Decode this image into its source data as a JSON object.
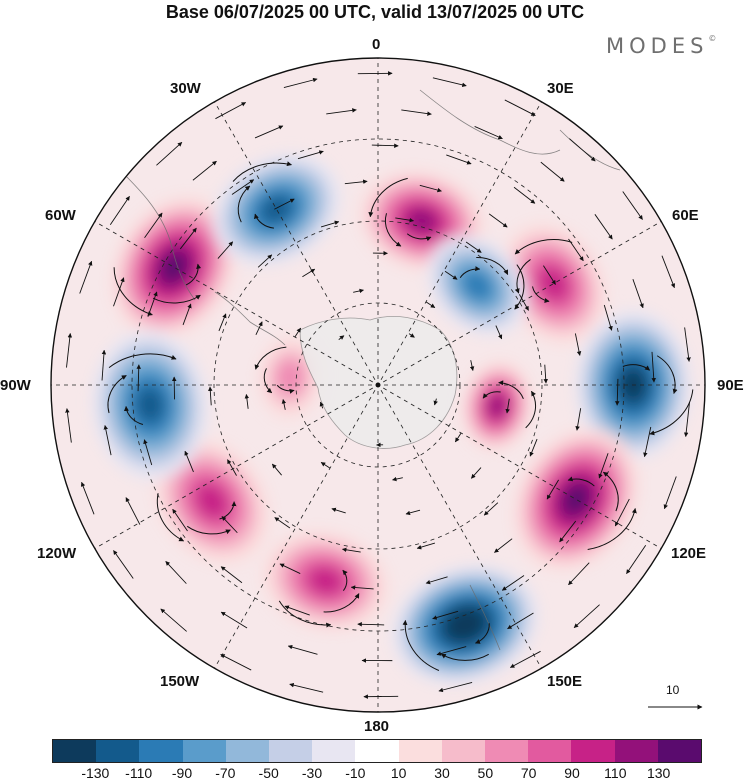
{
  "title": "Base 06/07/2025 00 UTC, valid 13/07/2025 00 UTC",
  "logo": "MODES",
  "logo_mark": "©",
  "longitude_labels": {
    "top": "0",
    "top_right": "30E",
    "right_upper": "60E",
    "right": "90E",
    "right_lower": "120E",
    "bottom_right": "150E",
    "bottom": "180",
    "bottom_left": "150W",
    "left_lower": "120W",
    "left": "90W",
    "left_upper": "60W",
    "top_left": "30W"
  },
  "reference_vector": "10",
  "colorbar": {
    "colors": [
      "#0d3a5c",
      "#135a8c",
      "#2b7bb5",
      "#5a9ccb",
      "#92b8da",
      "#c5cfe7",
      "#e8e6f2",
      "#ffffff",
      "#fbdede",
      "#f6bccb",
      "#ef8bb4",
      "#e25a9f",
      "#c72287",
      "#93117a",
      "#5a0b6e"
    ],
    "tick_labels": [
      "-130",
      "-110",
      "-90",
      "-70",
      "-50",
      "-30",
      "-10",
      "10",
      "30",
      "50",
      "70",
      "90",
      "110",
      "130"
    ]
  },
  "anomaly_centers": [
    {
      "sign": "positive",
      "strength": 110,
      "location": "60W"
    },
    {
      "sign": "negative",
      "strength": 90,
      "location": "30W"
    },
    {
      "sign": "positive",
      "strength": 90,
      "location": "15E"
    },
    {
      "sign": "positive",
      "strength": 70,
      "location": "60E"
    },
    {
      "sign": "negative",
      "strength": 70,
      "location": "45E"
    },
    {
      "sign": "negative",
      "strength": 110,
      "location": "90E"
    },
    {
      "sign": "positive",
      "strength": 90,
      "location": "100E"
    },
    {
      "sign": "positive",
      "strength": 110,
      "location": "120E"
    },
    {
      "sign": "negative",
      "strength": 130,
      "location": "160E"
    },
    {
      "sign": "positive",
      "strength": 70,
      "location": "165W"
    },
    {
      "sign": "positive",
      "strength": 70,
      "location": "125W"
    },
    {
      "sign": "negative",
      "strength": 90,
      "location": "95W"
    },
    {
      "sign": "positive",
      "strength": 30,
      "location": "85W"
    }
  ]
}
